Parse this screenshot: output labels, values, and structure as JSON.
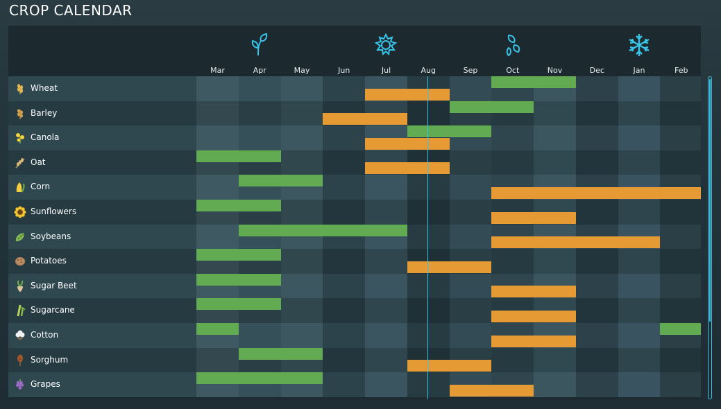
{
  "title": "CROP CALENDAR",
  "months": [
    "Mar",
    "Apr",
    "May",
    "Jun",
    "Jul",
    "Aug",
    "Sep",
    "Oct",
    "Nov",
    "Dec",
    "Jan",
    "Feb"
  ],
  "seasons": [
    {
      "name": "spring",
      "icon": "sprout-icon",
      "month_index": 1
    },
    {
      "name": "summer",
      "icon": "sun-icon",
      "month_index": 4
    },
    {
      "name": "autumn",
      "icon": "falling-leaves-icon",
      "month_index": 7
    },
    {
      "name": "winter",
      "icon": "snowflake-icon",
      "month_index": 10
    }
  ],
  "current_month_index": 5,
  "colors": {
    "plant": "#62ab52",
    "harvest": "#e69a33",
    "accent": "#39c3e8"
  },
  "crops": [
    {
      "name": "Wheat",
      "icon": "wheat-icon",
      "plant": [
        [
          7,
          8
        ]
      ],
      "harvest": [
        [
          4,
          5
        ]
      ]
    },
    {
      "name": "Barley",
      "icon": "barley-icon",
      "plant": [
        [
          6,
          7
        ]
      ],
      "harvest": [
        [
          3,
          4
        ]
      ]
    },
    {
      "name": "Canola",
      "icon": "canola-icon",
      "plant": [
        [
          5,
          6
        ]
      ],
      "harvest": [
        [
          4,
          5
        ]
      ]
    },
    {
      "name": "Oat",
      "icon": "oat-icon",
      "plant": [
        [
          0,
          1
        ]
      ],
      "harvest": [
        [
          4,
          5
        ]
      ]
    },
    {
      "name": "Corn",
      "icon": "corn-icon",
      "plant": [
        [
          1,
          2
        ]
      ],
      "harvest": [
        [
          7,
          11
        ]
      ]
    },
    {
      "name": "Sunflowers",
      "icon": "sunflower-icon",
      "plant": [
        [
          0,
          1
        ]
      ],
      "harvest": [
        [
          7,
          8
        ]
      ]
    },
    {
      "name": "Soybeans",
      "icon": "soybean-icon",
      "plant": [
        [
          1,
          4
        ]
      ],
      "harvest": [
        [
          7,
          10
        ]
      ]
    },
    {
      "name": "Potatoes",
      "icon": "potato-icon",
      "plant": [
        [
          0,
          1
        ]
      ],
      "harvest": [
        [
          5,
          6
        ]
      ]
    },
    {
      "name": "Sugar Beet",
      "icon": "sugar-beet-icon",
      "plant": [
        [
          0,
          1
        ]
      ],
      "harvest": [
        [
          7,
          8
        ]
      ]
    },
    {
      "name": "Sugarcane",
      "icon": "sugarcane-icon",
      "plant": [
        [
          0,
          1
        ]
      ],
      "harvest": [
        [
          7,
          8
        ]
      ]
    },
    {
      "name": "Cotton",
      "icon": "cotton-icon",
      "plant": [
        [
          0,
          0
        ],
        [
          11,
          11
        ]
      ],
      "harvest": [
        [
          7,
          8
        ]
      ]
    },
    {
      "name": "Sorghum",
      "icon": "sorghum-icon",
      "plant": [
        [
          1,
          2
        ]
      ],
      "harvest": [
        [
          5,
          6
        ]
      ]
    },
    {
      "name": "Grapes",
      "icon": "grapes-icon",
      "plant": [
        [
          0,
          2
        ]
      ],
      "harvest": [
        [
          6,
          7
        ]
      ]
    }
  ]
}
